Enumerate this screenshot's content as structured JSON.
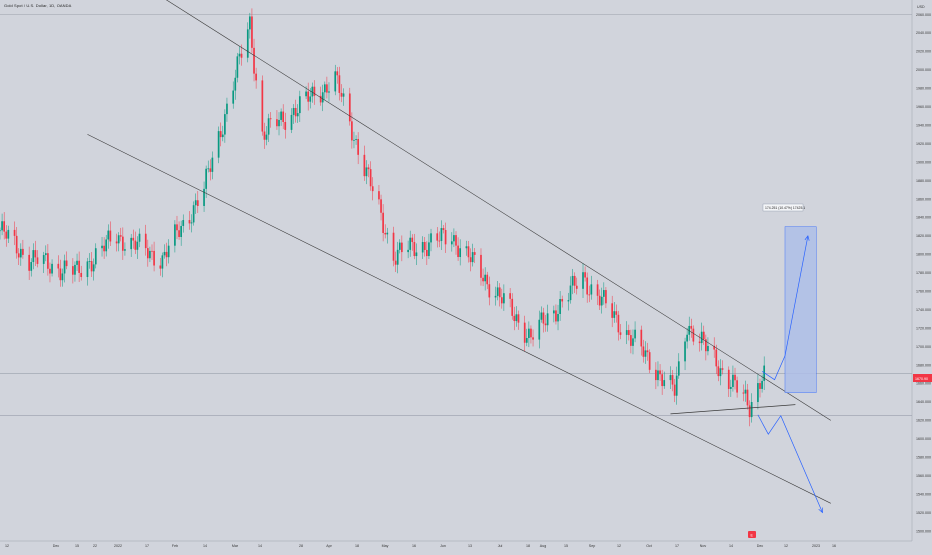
{
  "title": "Gold Spot / U.S. Dollar, 1D, OANDA",
  "colors": {
    "background": "#d1d4dc",
    "up": "#089981",
    "down": "#f23645",
    "channel": "#3a3a3a",
    "arrow": "#2962ff",
    "projection_fill": "#aebee8",
    "projection_stroke": "#2962ff",
    "gridline": "#9aa0aa"
  },
  "price_axis": {
    "ticks": [
      "USD",
      "2060.000",
      "2040.000",
      "2020.000",
      "2000.000",
      "1980.000",
      "1960.000",
      "1940.000",
      "1920.000",
      "1900.000",
      "1880.000",
      "1860.000",
      "1840.000",
      "1820.000",
      "1800.000",
      "1780.000",
      "1760.000",
      "1740.000",
      "1720.000",
      "1700.000",
      "1680.000",
      "1660.000",
      "1640.000",
      "1620.000",
      "1600.000",
      "1580.000",
      "1560.000",
      "1540.000",
      "1520.000",
      "1500.000"
    ],
    "current_price_label": "1670.90"
  },
  "time_axis": {
    "ticks": [
      "12",
      "Dec",
      "15",
      "22",
      "2022",
      "17",
      "Feb",
      "14",
      "Mar",
      "14",
      "28",
      "Apr",
      "18",
      "May",
      "16",
      "Jun",
      "13",
      "Jul",
      "18",
      "Aug",
      "15",
      "Sep",
      "12",
      "Oct",
      "17",
      "Nov",
      "14",
      "Dec",
      "12",
      "2023",
      "16"
    ]
  },
  "projection": {
    "label": "174.251 (10.47%) 17425.1"
  },
  "event_marker": "E",
  "chart_data": {
    "type": "candlestick",
    "title": "Gold Spot / U.S. Dollar, 1D, OANDA",
    "xlabel": "",
    "ylabel": "",
    "ylim": [
      1490,
      2080
    ],
    "x_range": [
      "2021-11-08",
      "2023-01-20"
    ],
    "grid": true,
    "series": [
      {
        "name": "",
        "ohlc_points": [
          {
            "t": "2021-11-08",
            "o": 1820,
            "h": 1830,
            "l": 1812,
            "c": 1826
          },
          {
            "t": "2021-11-22",
            "o": 1850,
            "h": 1860,
            "l": 1790,
            "c": 1795
          },
          {
            "t": "2021-12-15",
            "o": 1770,
            "h": 1790,
            "l": 1752,
            "c": 1780
          },
          {
            "t": "2022-01-03",
            "o": 1800,
            "h": 1830,
            "l": 1785,
            "c": 1820
          },
          {
            "t": "2022-01-25",
            "o": 1845,
            "h": 1850,
            "l": 1790,
            "c": 1795
          },
          {
            "t": "2022-02-14",
            "o": 1860,
            "h": 1880,
            "l": 1850,
            "c": 1870
          },
          {
            "t": "2022-03-08",
            "o": 2040,
            "h": 2070,
            "l": 2000,
            "c": 2050
          },
          {
            "t": "2022-03-14",
            "o": 1960,
            "h": 1970,
            "l": 1920,
            "c": 1930
          },
          {
            "t": "2022-04-18",
            "o": 1980,
            "h": 1998,
            "l": 1960,
            "c": 1990
          },
          {
            "t": "2022-05-16",
            "o": 1820,
            "h": 1835,
            "l": 1786,
            "c": 1800
          },
          {
            "t": "2022-06-13",
            "o": 1870,
            "h": 1880,
            "l": 1810,
            "c": 1820
          },
          {
            "t": "2022-07-21",
            "o": 1690,
            "h": 1720,
            "l": 1680,
            "c": 1710
          },
          {
            "t": "2022-08-15",
            "o": 1805,
            "h": 1810,
            "l": 1770,
            "c": 1775
          },
          {
            "t": "2022-09-28",
            "o": 1640,
            "h": 1660,
            "l": 1615,
            "c": 1650
          },
          {
            "t": "2022-10-04",
            "o": 1700,
            "h": 1730,
            "l": 1690,
            "c": 1725
          },
          {
            "t": "2022-11-03",
            "o": 1630,
            "h": 1640,
            "l": 1616,
            "c": 1635
          },
          {
            "t": "2022-11-09",
            "o": 1650,
            "h": 1675,
            "l": 1645,
            "c": 1671
          }
        ]
      }
    ],
    "current_price": 1670.9,
    "channel_upper": {
      "from": {
        "t": "2022-01-03",
        "p": 2110
      },
      "to": {
        "t": "2022-12-12",
        "p": 1620
      }
    },
    "channel_lower": {
      "from": {
        "t": "2021-12-20",
        "p": 1930
      },
      "to": {
        "t": "2022-12-12",
        "p": 1530
      }
    },
    "support_line": {
      "from": {
        "t": "2022-09-26",
        "p": 1627
      },
      "to": {
        "t": "2022-11-25",
        "p": 1637
      }
    },
    "projection_box": {
      "from_time": "2022-11-20",
      "to_time": "2022-12-05",
      "low": 1650,
      "high": 1830,
      "change": "174.251 (10.47%)"
    },
    "scenario_up": [
      {
        "t": "2022-11-09",
        "p": 1673
      },
      {
        "t": "2022-11-15",
        "p": 1664
      },
      {
        "t": "2022-11-20",
        "p": 1690
      },
      {
        "t": "2022-12-01",
        "p": 1820
      }
    ],
    "scenario_down": [
      {
        "t": "2022-11-07",
        "p": 1626
      },
      {
        "t": "2022-11-12",
        "p": 1605
      },
      {
        "t": "2022-11-18",
        "p": 1625
      },
      {
        "t": "2022-12-08",
        "p": 1520
      }
    ]
  }
}
